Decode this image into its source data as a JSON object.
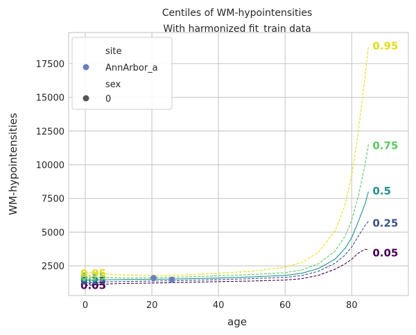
{
  "chart_data": {
    "type": "line",
    "title": "Centiles of WM-hypointensities",
    "subtitle": "With harmonized fit_train data",
    "xlabel": "age",
    "ylabel": "WM-hypointensities",
    "xlim": [
      -5,
      97
    ],
    "ylim": [
      300,
      19800
    ],
    "xticks": [
      0,
      20,
      40,
      60,
      80
    ],
    "yticks": [
      2500,
      5000,
      7500,
      10000,
      12500,
      15000,
      17500
    ],
    "grid": true,
    "legend": {
      "placement": "top-left",
      "entries": [
        {
          "kind": "header",
          "text": "site"
        },
        {
          "kind": "marker",
          "text": "AnnArbor_a",
          "color": "#6a80b9"
        },
        {
          "kind": "header",
          "text": "sex"
        },
        {
          "kind": "marker",
          "text": "0",
          "color": "#555555"
        }
      ]
    },
    "x": [
      0,
      5,
      8,
      12,
      20,
      30,
      40,
      50,
      60,
      65,
      70,
      75,
      78,
      80,
      82,
      84,
      85
    ],
    "series": [
      {
        "name": "0.05",
        "color": "#440154",
        "dash": true,
        "y": [
          1050,
          1120,
          1180,
          1200,
          1230,
          1280,
          1330,
          1380,
          1450,
          1550,
          1800,
          2250,
          2650,
          3000,
          3450,
          3730,
          3700
        ]
      },
      {
        "name": "0.25",
        "color": "#3b528b",
        "dash": true,
        "y": [
          1250,
          1300,
          1330,
          1340,
          1370,
          1420,
          1480,
          1550,
          1650,
          1780,
          2100,
          2700,
          3300,
          3900,
          4700,
          5500,
          5800
        ]
      },
      {
        "name": "0.5",
        "color": "#21918c",
        "dash": false,
        "y": [
          1450,
          1460,
          1480,
          1490,
          1500,
          1540,
          1600,
          1680,
          1800,
          1950,
          2300,
          3000,
          3800,
          4600,
          5800,
          7100,
          8000
        ]
      },
      {
        "name": "0.75",
        "color": "#5ec962",
        "dash": true,
        "y": [
          1650,
          1640,
          1620,
          1600,
          1620,
          1680,
          1760,
          1860,
          2000,
          2200,
          2650,
          3600,
          4700,
          5900,
          7700,
          10000,
          11500
        ]
      },
      {
        "name": "0.95",
        "color": "#e5dc1c",
        "dash": true,
        "y": [
          2000,
          1960,
          1870,
          1830,
          1770,
          1830,
          1950,
          2100,
          2400,
          2750,
          3500,
          5100,
          7000,
          9200,
          12500,
          16500,
          18800
        ]
      }
    ],
    "points": [
      {
        "x": 20.5,
        "y": 1600,
        "color": "#6a80b9"
      },
      {
        "x": 26,
        "y": 1480,
        "color": "#6a80b9"
      }
    ],
    "start_label_y": [
      1050,
      1380,
      1550,
      1700,
      1950
    ],
    "end_label_y": [
      3450,
      5650,
      8050,
      11400,
      18800
    ]
  }
}
